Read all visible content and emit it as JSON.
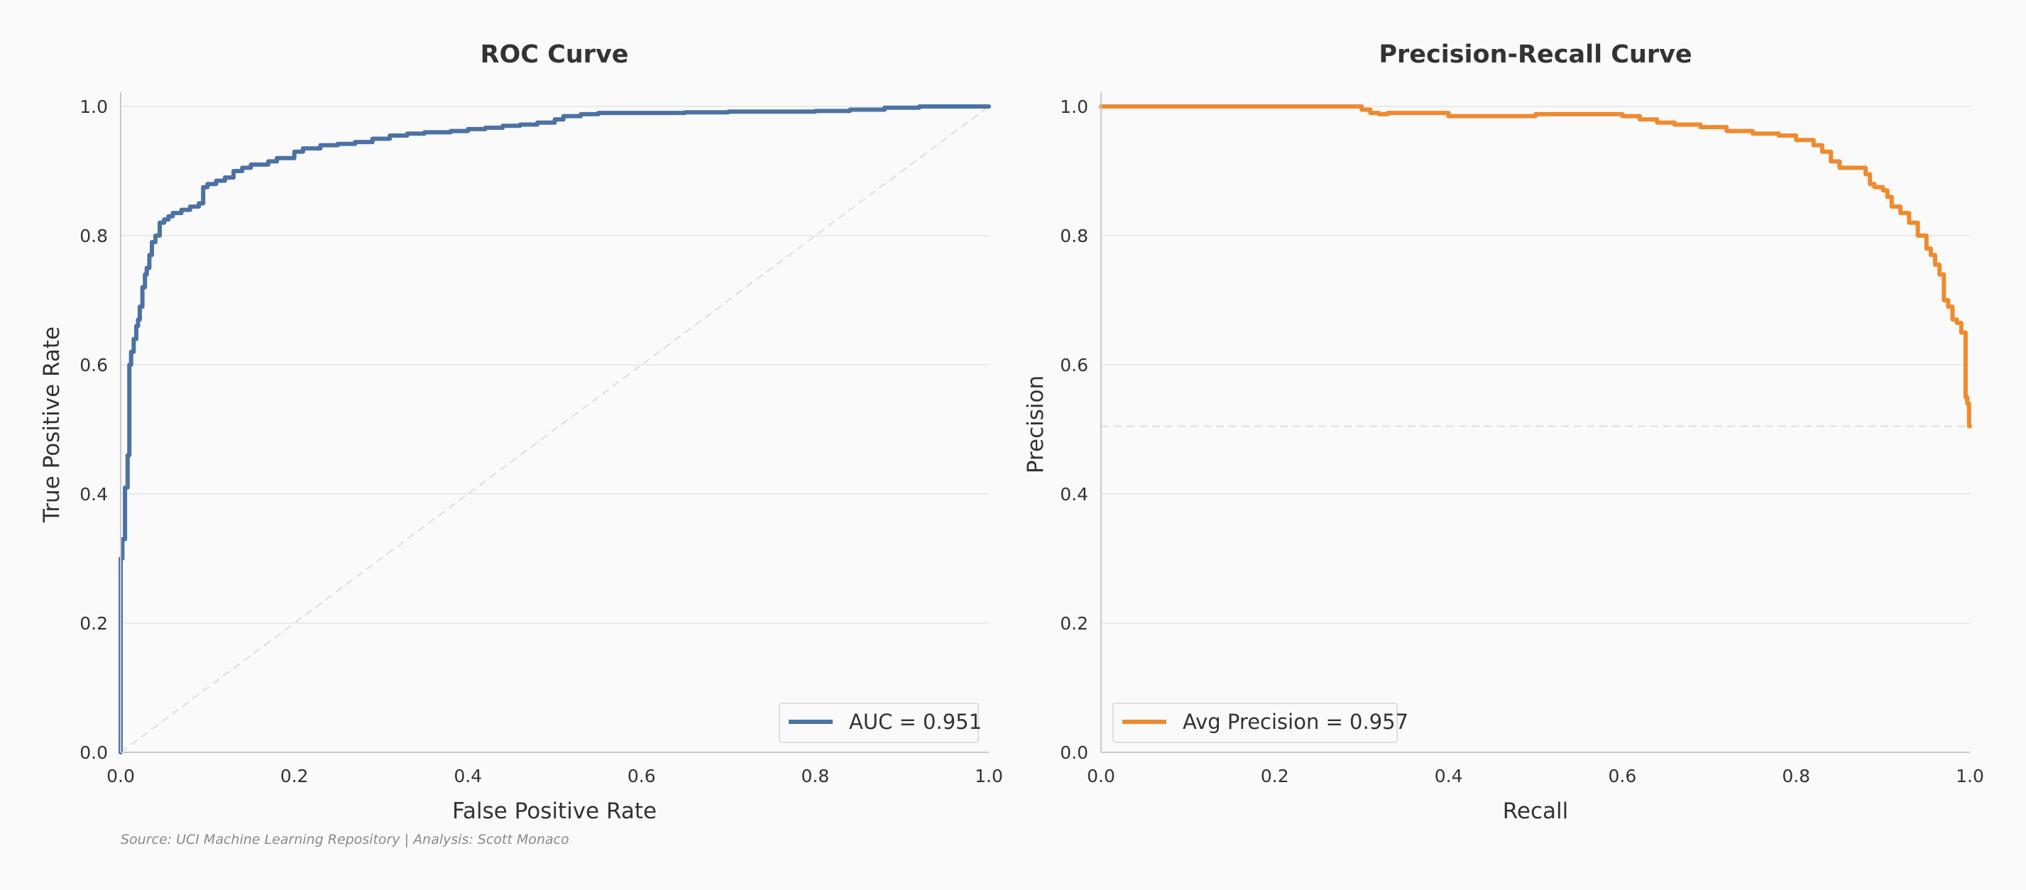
{
  "source_note": "Source: UCI Machine Learning Repository | Analysis: Scott Monaco",
  "chart_data": [
    {
      "type": "line",
      "title": "ROC Curve",
      "xlabel": "False Positive Rate",
      "ylabel": "True Positive Rate",
      "xlim": [
        0,
        1
      ],
      "ylim": [
        0,
        1
      ],
      "xticks": [
        "0.0",
        "0.2",
        "0.4",
        "0.6",
        "0.8",
        "1.0"
      ],
      "yticks": [
        "0.0",
        "0.2",
        "0.4",
        "0.6",
        "0.8",
        "1.0"
      ],
      "grid": "horizontal",
      "legend_position": "bottom-right",
      "color": "#4c72a4",
      "reference_line": "diagonal",
      "series": [
        {
          "name": "AUC = 0.951",
          "x": [
            0,
            0,
            0.002,
            0.002,
            0.005,
            0.005,
            0.008,
            0.008,
            0.01,
            0.012,
            0.015,
            0.018,
            0.02,
            0.022,
            0.025,
            0.028,
            0.03,
            0.033,
            0.036,
            0.04,
            0.045,
            0.05,
            0.055,
            0.06,
            0.07,
            0.08,
            0.09,
            0.095,
            0.1,
            0.11,
            0.12,
            0.13,
            0.14,
            0.15,
            0.17,
            0.18,
            0.2,
            0.21,
            0.23,
            0.25,
            0.27,
            0.29,
            0.31,
            0.33,
            0.35,
            0.38,
            0.4,
            0.42,
            0.44,
            0.46,
            0.48,
            0.5,
            0.51,
            0.53,
            0.55,
            0.6,
            0.65,
            0.7,
            0.8,
            0.84,
            0.88,
            0.92,
            1.0
          ],
          "y": [
            0,
            0.3,
            0.31,
            0.33,
            0.33,
            0.41,
            0.41,
            0.46,
            0.6,
            0.62,
            0.64,
            0.66,
            0.67,
            0.69,
            0.72,
            0.74,
            0.75,
            0.77,
            0.79,
            0.8,
            0.82,
            0.825,
            0.83,
            0.835,
            0.84,
            0.845,
            0.85,
            0.875,
            0.88,
            0.885,
            0.89,
            0.9,
            0.905,
            0.91,
            0.915,
            0.92,
            0.93,
            0.935,
            0.94,
            0.942,
            0.945,
            0.95,
            0.955,
            0.958,
            0.96,
            0.962,
            0.965,
            0.967,
            0.97,
            0.972,
            0.975,
            0.98,
            0.985,
            0.988,
            0.99,
            0.99,
            0.991,
            0.992,
            0.993,
            0.995,
            0.998,
            1.0,
            1.0
          ]
        }
      ]
    },
    {
      "type": "line",
      "title": "Precision-Recall Curve",
      "xlabel": "Recall",
      "ylabel": "Precision",
      "xlim": [
        0,
        1
      ],
      "ylim": [
        0,
        1
      ],
      "xticks": [
        "0.0",
        "0.2",
        "0.4",
        "0.6",
        "0.8",
        "1.0"
      ],
      "yticks": [
        "0.0",
        "0.2",
        "0.4",
        "0.6",
        "0.8",
        "1.0"
      ],
      "grid": "horizontal",
      "legend_position": "bottom-left",
      "color": "#ef8a2e",
      "reference_line": "horizontal",
      "baseline_y": 0.505,
      "series": [
        {
          "name": "Avg Precision = 0.957",
          "x": [
            0,
            0.3,
            0.31,
            0.32,
            0.33,
            0.4,
            0.45,
            0.5,
            0.6,
            0.62,
            0.64,
            0.66,
            0.69,
            0.72,
            0.75,
            0.78,
            0.8,
            0.82,
            0.83,
            0.84,
            0.85,
            0.86,
            0.88,
            0.885,
            0.89,
            0.9,
            0.905,
            0.91,
            0.92,
            0.93,
            0.94,
            0.95,
            0.955,
            0.96,
            0.965,
            0.97,
            0.975,
            0.98,
            0.985,
            0.99,
            0.995,
            0.997,
            0.999,
            1.0
          ],
          "y": [
            1.0,
            1.0,
            0.995,
            0.99,
            0.988,
            0.99,
            0.985,
            0.985,
            0.988,
            0.985,
            0.98,
            0.975,
            0.972,
            0.968,
            0.962,
            0.958,
            0.955,
            0.948,
            0.94,
            0.93,
            0.915,
            0.905,
            0.905,
            0.895,
            0.88,
            0.875,
            0.87,
            0.86,
            0.845,
            0.835,
            0.82,
            0.8,
            0.78,
            0.77,
            0.755,
            0.74,
            0.7,
            0.69,
            0.67,
            0.665,
            0.65,
            0.55,
            0.54,
            0.505
          ]
        }
      ]
    }
  ]
}
